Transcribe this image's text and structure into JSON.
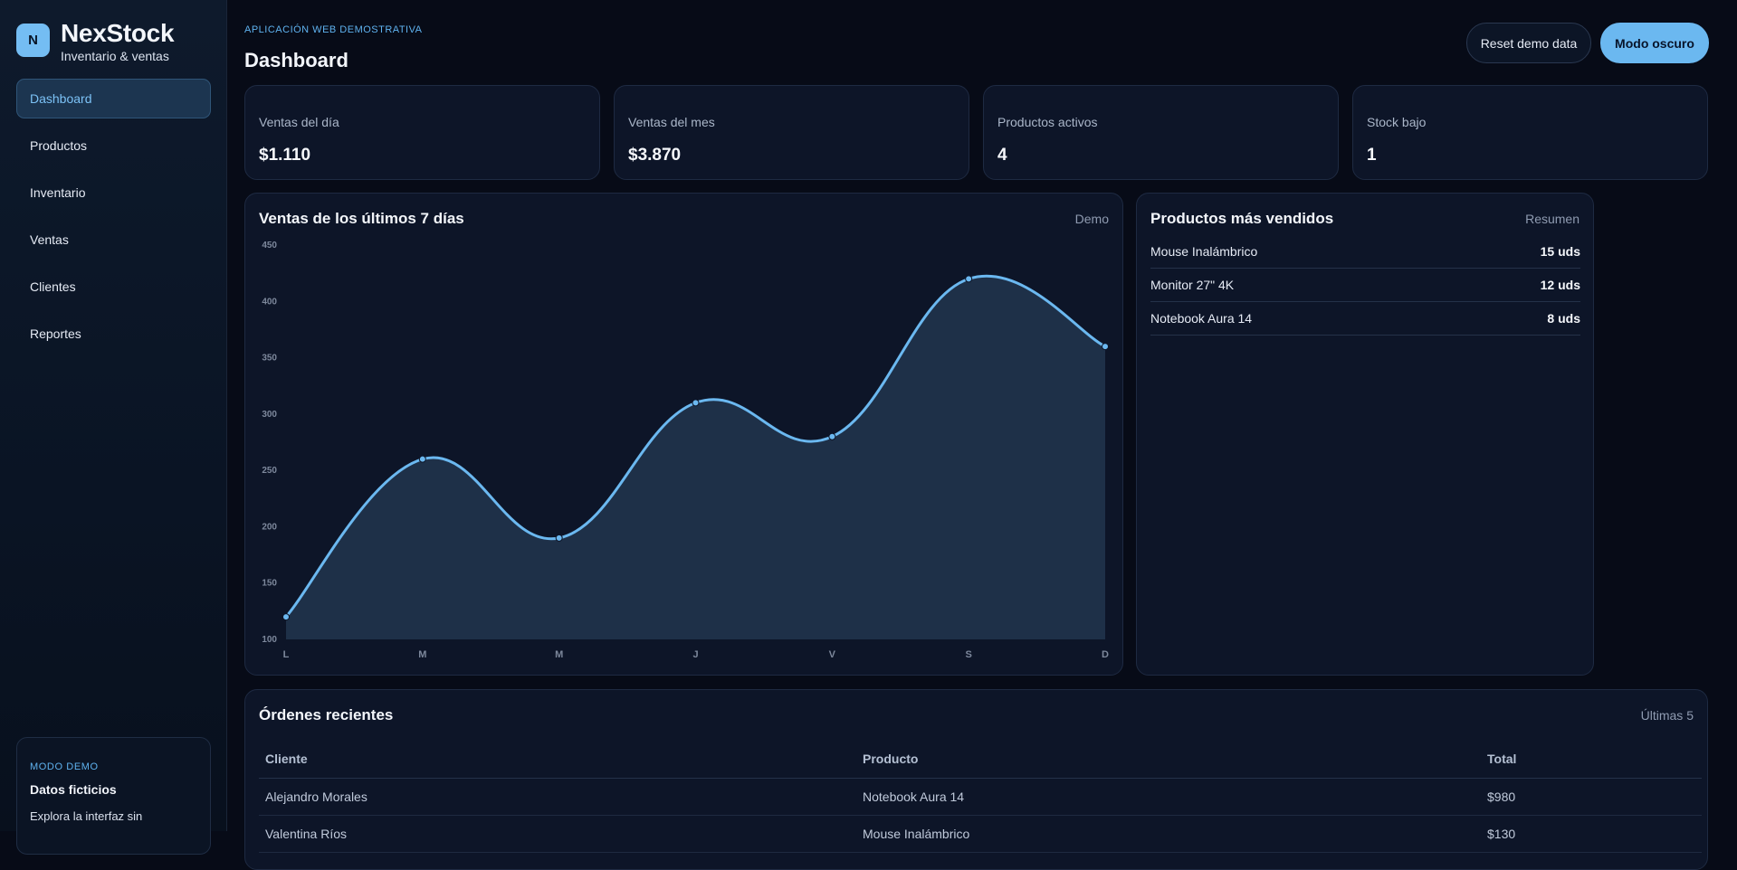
{
  "brand": {
    "logo": "N",
    "name": "NexStock",
    "subtitle": "Inventario & ventas"
  },
  "nav": [
    {
      "label": "Dashboard",
      "active": true
    },
    {
      "label": "Productos"
    },
    {
      "label": "Inventario"
    },
    {
      "label": "Ventas"
    },
    {
      "label": "Clientes"
    },
    {
      "label": "Reportes"
    }
  ],
  "demo": {
    "tag": "MODO DEMO",
    "title": "Datos ficticios",
    "description": "Explora la interfaz sin"
  },
  "header": {
    "eyebrow": "APLICACIÓN WEB DEMOSTRATIVA",
    "title": "Dashboard",
    "reset_label": "Reset demo data",
    "dark_label": "Modo oscuro"
  },
  "stats": [
    {
      "label": "Ventas del día",
      "value": "$1.110"
    },
    {
      "label": "Ventas del mes",
      "value": "$3.870"
    },
    {
      "label": "Productos activos",
      "value": "4"
    },
    {
      "label": "Stock bajo",
      "value": "1"
    }
  ],
  "sales_card": {
    "title": "Ventas de los últimos 7 días",
    "aside": "Demo"
  },
  "chart_data": {
    "type": "area",
    "title": "Ventas de los últimos 7 días",
    "categories": [
      "L",
      "M",
      "M",
      "J",
      "V",
      "S",
      "D"
    ],
    "values": [
      120,
      260,
      190,
      310,
      280,
      420,
      360
    ],
    "ylim": [
      100,
      450
    ],
    "yticks": [
      100,
      150,
      200,
      250,
      300,
      350,
      400,
      450
    ],
    "grid": false,
    "colors": {
      "line": "#6bb8f0",
      "fill": "#1e3048"
    }
  },
  "top_products": {
    "title": "Productos más vendidos",
    "aside": "Resumen",
    "items": [
      {
        "name": "Mouse Inalámbrico",
        "qty": "15 uds"
      },
      {
        "name": "Monitor 27\" 4K",
        "qty": "12 uds"
      },
      {
        "name": "Notebook Aura 14",
        "qty": "8 uds"
      }
    ]
  },
  "orders": {
    "title": "Órdenes recientes",
    "aside": "Últimas 5",
    "columns": [
      "Cliente",
      "Producto",
      "Total"
    ],
    "rows": [
      [
        "Alejandro Morales",
        "Notebook Aura 14",
        "$980"
      ],
      [
        "Valentina Ríos",
        "Mouse Inalámbrico",
        "$130"
      ]
    ]
  }
}
